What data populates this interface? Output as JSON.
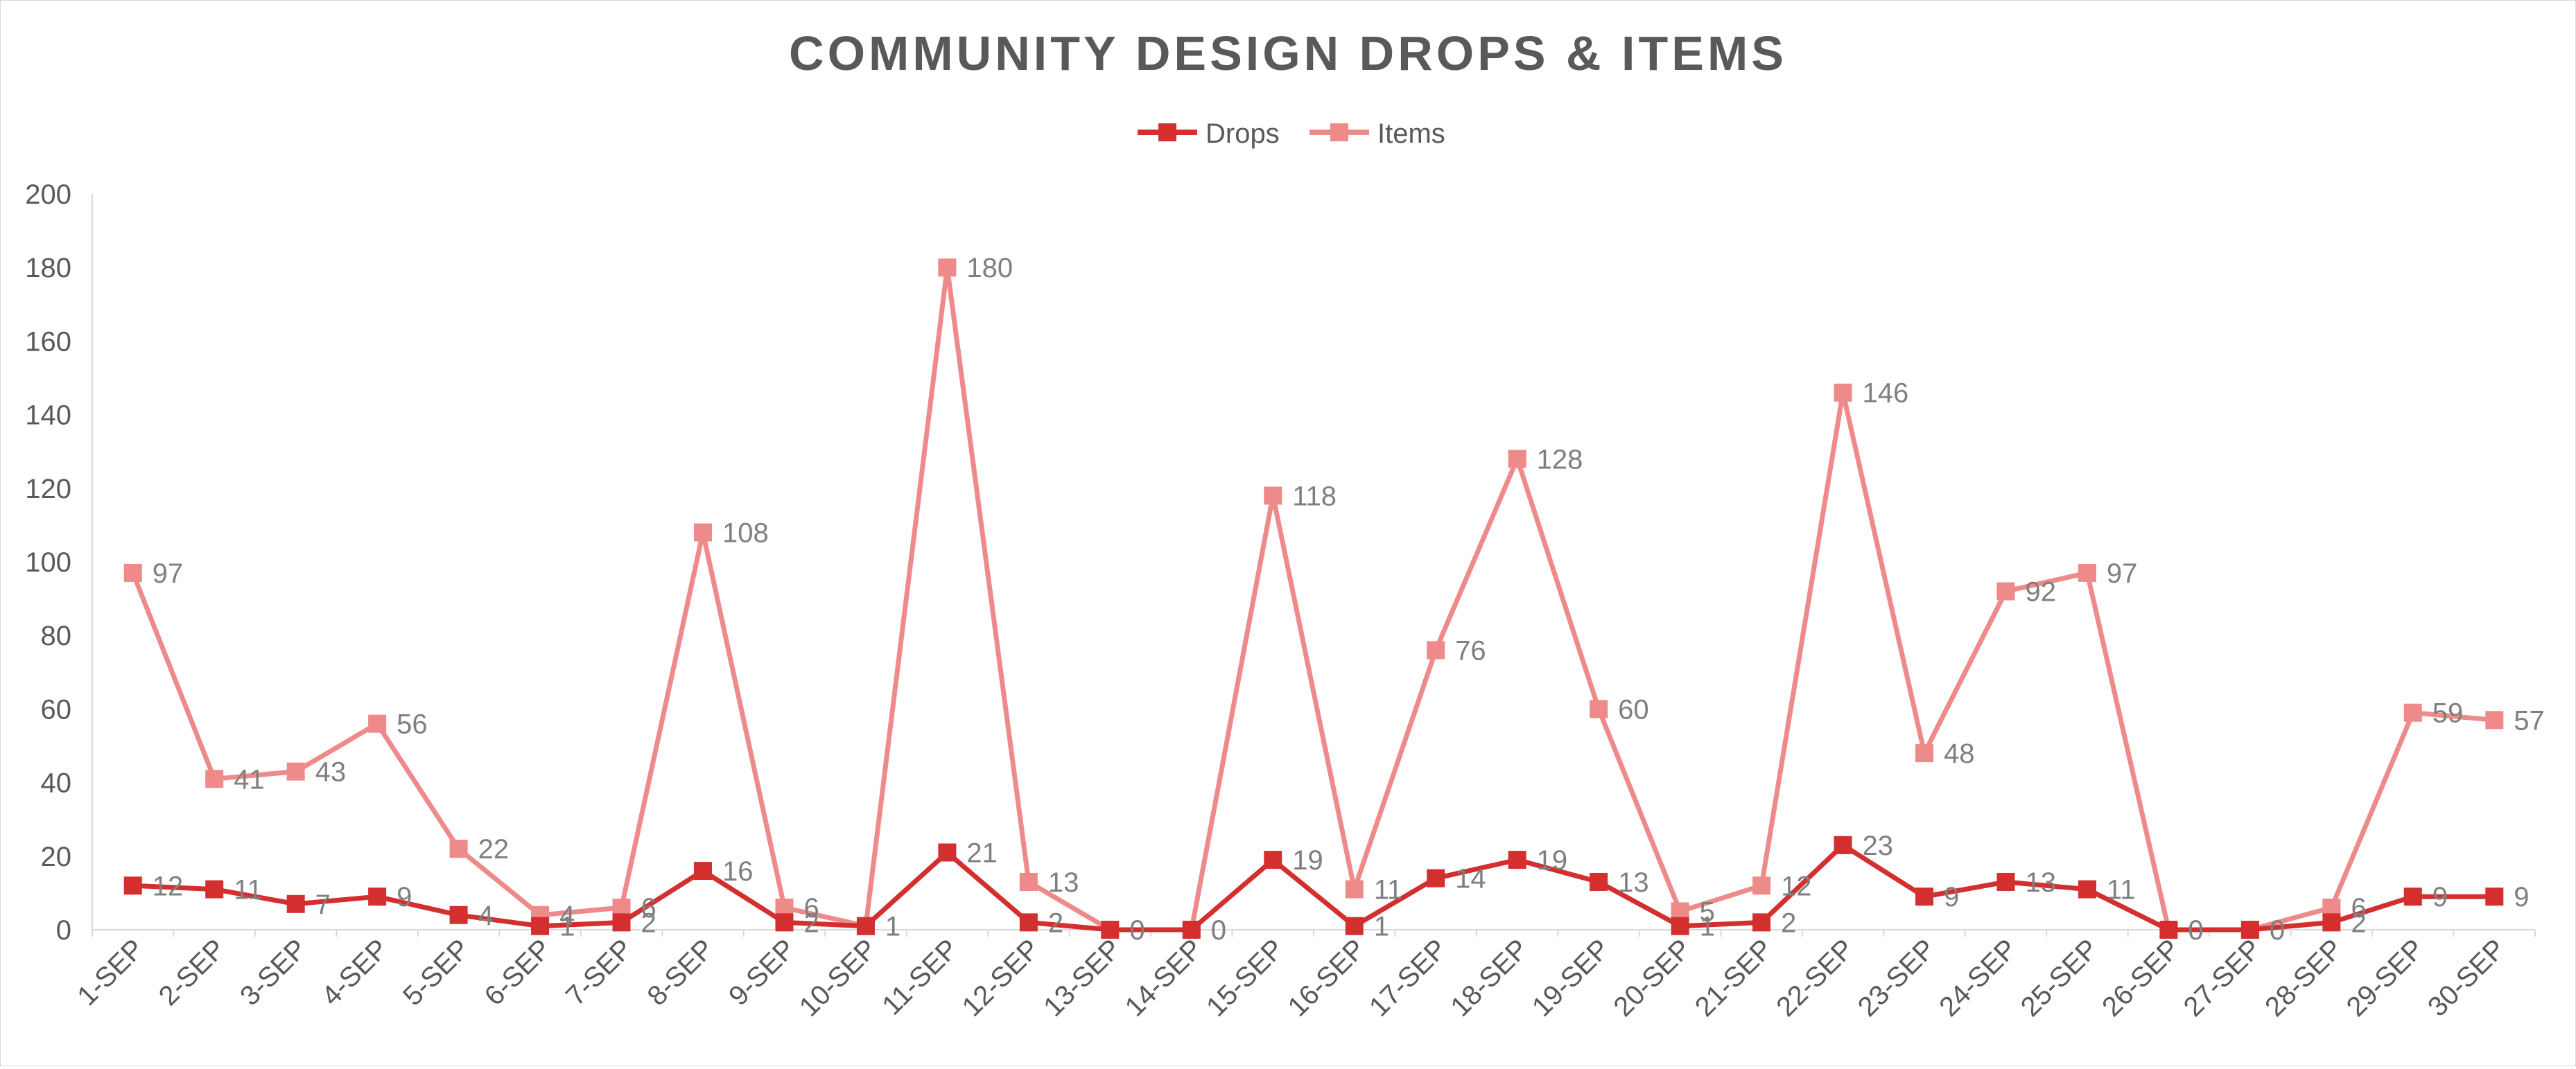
{
  "chart_data": {
    "type": "line",
    "title": "COMMUNITY DESIGN DROPS & ITEMS",
    "xlabel": "",
    "ylabel": "",
    "ylim": [
      0,
      200
    ],
    "yticks": [
      0,
      20,
      40,
      60,
      80,
      100,
      120,
      140,
      160,
      180,
      200
    ],
    "grid": false,
    "legend_position": "top-center",
    "categories": [
      "1-SEP",
      "2-SEP",
      "3-SEP",
      "4-SEP",
      "5-SEP",
      "6-SEP",
      "7-SEP",
      "8-SEP",
      "9-SEP",
      "10-SEP",
      "11-SEP",
      "12-SEP",
      "13-SEP",
      "14-SEP",
      "15-SEP",
      "16-SEP",
      "17-SEP",
      "18-SEP",
      "19-SEP",
      "20-SEP",
      "21-SEP",
      "22-SEP",
      "23-SEP",
      "24-SEP",
      "25-SEP",
      "26-SEP",
      "27-SEP",
      "28-SEP",
      "29-SEP",
      "30-SEP"
    ],
    "series": [
      {
        "name": "Drops",
        "color": "#d32f2f",
        "marker": "square",
        "values": [
          12,
          11,
          7,
          9,
          4,
          1,
          2,
          16,
          2,
          1,
          21,
          2,
          0,
          0,
          19,
          1,
          14,
          19,
          13,
          1,
          2,
          23,
          9,
          13,
          11,
          0,
          0,
          2,
          9,
          9
        ]
      },
      {
        "name": "Items",
        "color": "#ee8a8a",
        "marker": "square",
        "values": [
          97,
          41,
          43,
          56,
          22,
          4,
          6,
          108,
          6,
          1,
          180,
          13,
          0,
          0,
          118,
          11,
          76,
          128,
          60,
          5,
          12,
          146,
          48,
          92,
          97,
          0,
          0,
          6,
          59,
          57
        ]
      }
    ]
  },
  "colors": {
    "title": "#595959",
    "axis_text": "#595959",
    "data_label": "#7f7f7f",
    "axis_line": "#d9d9d9"
  }
}
